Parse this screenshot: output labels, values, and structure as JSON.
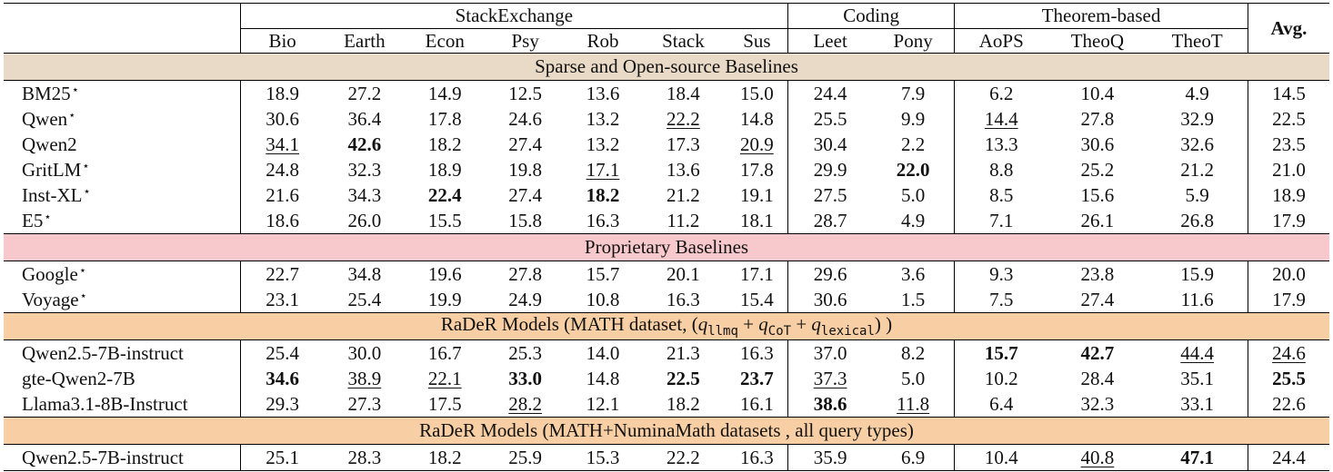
{
  "group_headers": {
    "stackexchange": "StackExchange",
    "coding": "Coding",
    "theorem": "Theorem-based",
    "avg": "Avg."
  },
  "columns": [
    "Bio",
    "Earth",
    "Econ",
    "Psy",
    "Rob",
    "Stack",
    "Sus",
    "Leet",
    "Pony",
    "AoPS",
    "TheoQ",
    "TheoT"
  ],
  "sections": [
    {
      "title": "Sparse and Open-source Baselines",
      "color": "#e9d9c7",
      "rows": [
        {
          "model": "BM25",
          "star": "⋆",
          "values": [
            "18.9",
            "27.2",
            "14.9",
            "12.5",
            "13.6",
            "18.4",
            "15.0",
            "24.4",
            "7.9",
            "6.2",
            "10.4",
            "4.9",
            "14.5"
          ],
          "bold": [],
          "underline": []
        },
        {
          "model": "Qwen",
          "star": "⋆",
          "values": [
            "30.6",
            "36.4",
            "17.8",
            "24.6",
            "13.2",
            "22.2",
            "14.8",
            "25.5",
            "9.9",
            "14.4",
            "27.8",
            "32.9",
            "22.5"
          ],
          "bold": [],
          "underline": [
            5,
            9
          ]
        },
        {
          "model": "Qwen2",
          "star": "",
          "values": [
            "34.1",
            "42.6",
            "18.2",
            "27.4",
            "13.2",
            "17.3",
            "20.9",
            "30.4",
            "2.2",
            "13.3",
            "30.6",
            "32.6",
            "23.5"
          ],
          "bold": [
            1
          ],
          "underline": [
            0,
            6
          ]
        },
        {
          "model": "GritLM",
          "star": "⋆",
          "values": [
            "24.8",
            "32.3",
            "18.9",
            "19.8",
            "17.1",
            "13.6",
            "17.8",
            "29.9",
            "22.0",
            "8.8",
            "25.2",
            "21.2",
            "21.0"
          ],
          "bold": [
            8
          ],
          "underline": [
            4
          ]
        },
        {
          "model": "Inst-XL",
          "star": "⋆",
          "values": [
            "21.6",
            "34.3",
            "22.4",
            "27.4",
            "18.2",
            "21.2",
            "19.1",
            "27.5",
            "5.0",
            "8.5",
            "15.6",
            "5.9",
            "18.9"
          ],
          "bold": [
            2,
            4
          ],
          "underline": []
        },
        {
          "model": "E5",
          "star": "⋆",
          "values": [
            "18.6",
            "26.0",
            "15.5",
            "15.8",
            "16.3",
            "11.2",
            "18.1",
            "28.7",
            "4.9",
            "7.1",
            "26.1",
            "26.8",
            "17.9"
          ],
          "bold": [],
          "underline": []
        }
      ]
    },
    {
      "title": "Proprietary Baselines",
      "color": "#f7c9cc",
      "rows": [
        {
          "model": "Google",
          "star": "⋆",
          "values": [
            "22.7",
            "34.8",
            "19.6",
            "27.8",
            "15.7",
            "20.1",
            "17.1",
            "29.6",
            "3.6",
            "9.3",
            "23.8",
            "15.9",
            "20.0"
          ],
          "bold": [],
          "underline": []
        },
        {
          "model": "Voyage",
          "star": "⋆",
          "values": [
            "23.1",
            "25.4",
            "19.9",
            "24.9",
            "10.8",
            "16.3",
            "15.4",
            "30.6",
            "1.5",
            "7.5",
            "27.4",
            "11.6",
            "17.9"
          ],
          "bold": [],
          "underline": []
        }
      ]
    },
    {
      "title_prefix": "RaDeR Models (MATH dataset, (",
      "title_math": [
        {
          "t": "q",
          "sub": "llmq"
        },
        {
          "op": " + "
        },
        {
          "t": "q",
          "sub": "CoT"
        },
        {
          "op": " + "
        },
        {
          "t": "q",
          "sub": "lexical"
        }
      ],
      "title_suffix": ") )",
      "color": "#f8cfa4",
      "rows": [
        {
          "model": "Qwen2.5-7B-instruct",
          "star": "",
          "values": [
            "25.4",
            "30.0",
            "16.7",
            "25.3",
            "14.0",
            "21.3",
            "16.3",
            "37.0",
            "8.2",
            "15.7",
            "42.7",
            "44.4",
            "24.6"
          ],
          "bold": [
            9,
            10
          ],
          "underline": [
            11,
            12
          ]
        },
        {
          "model": "gte-Qwen2-7B",
          "star": "",
          "values": [
            "34.6",
            "38.9",
            "22.1",
            "33.0",
            "14.8",
            "22.5",
            "23.7",
            "37.3",
            "5.0",
            "10.2",
            "28.4",
            "35.1",
            "25.5"
          ],
          "bold": [
            0,
            3,
            5,
            6,
            12
          ],
          "underline": [
            1,
            2,
            7
          ]
        },
        {
          "model": "Llama3.1-8B-Instruct",
          "star": "",
          "values": [
            "29.3",
            "27.3",
            "17.5",
            "28.2",
            "12.1",
            "18.2",
            "16.1",
            "38.6",
            "11.8",
            "6.4",
            "32.3",
            "33.1",
            "22.6"
          ],
          "bold": [
            7
          ],
          "underline": [
            3,
            8
          ]
        }
      ]
    },
    {
      "title": "RaDeR Models (MATH+NuminaMath datasets , all query types)",
      "color": "#f8cfa4",
      "rows": [
        {
          "model": "Qwen2.5-7B-instruct",
          "star": "",
          "values": [
            "25.1",
            "28.3",
            "18.2",
            "25.9",
            "15.3",
            "22.2",
            "16.3",
            "35.9",
            "6.9",
            "10.4",
            "40.8",
            "47.1",
            "24.4"
          ],
          "bold": [
            11
          ],
          "underline": [
            10
          ]
        }
      ]
    }
  ]
}
